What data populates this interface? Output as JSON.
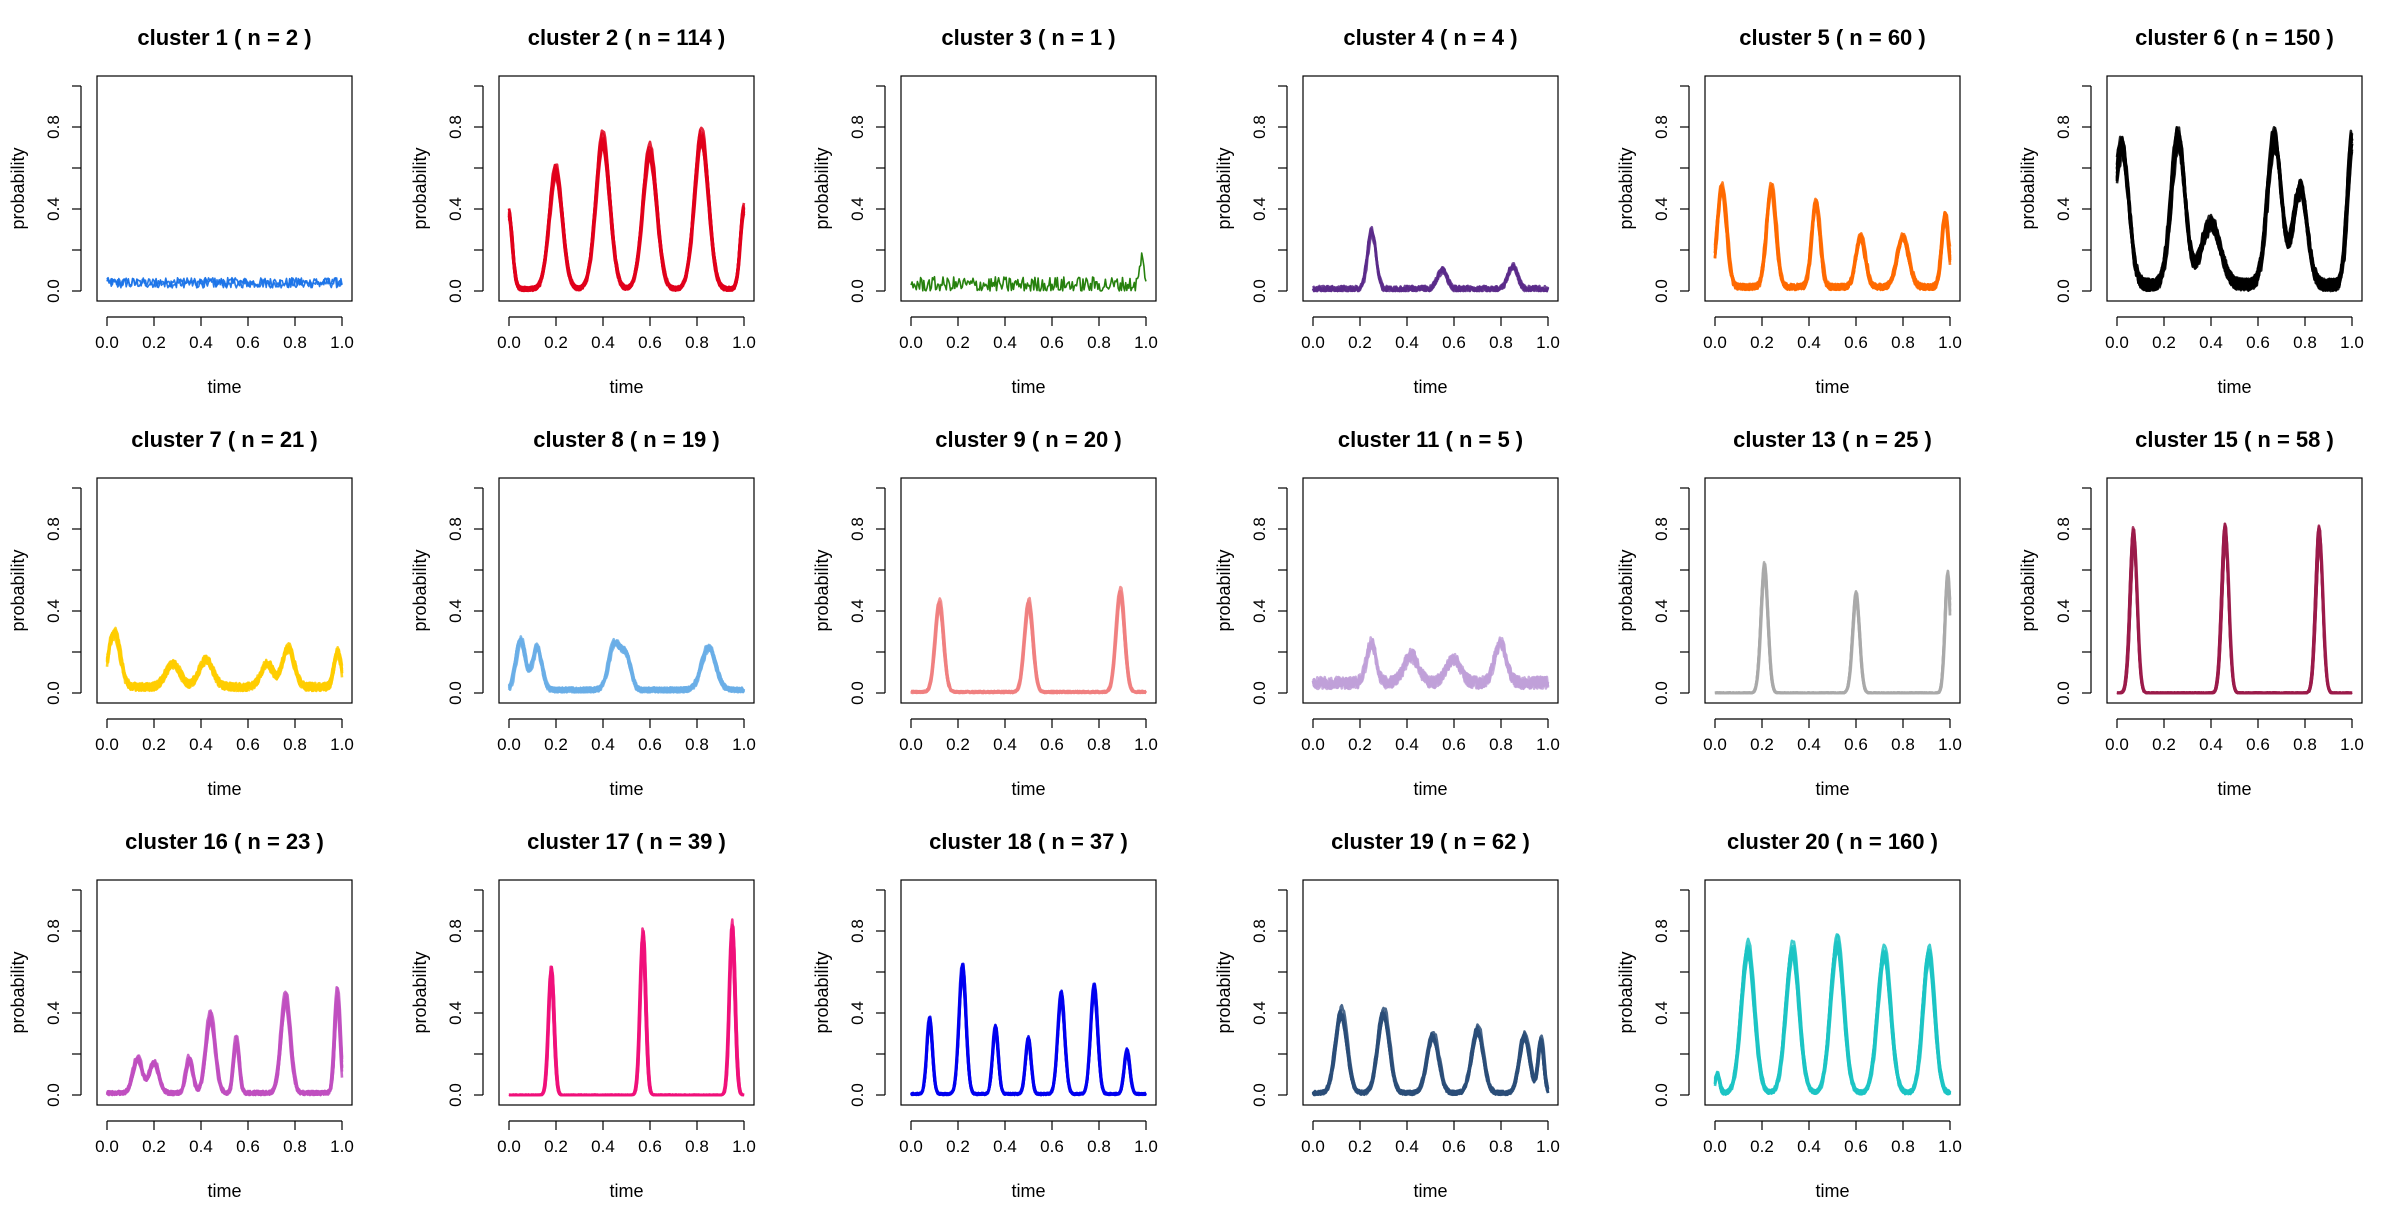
{
  "figure": {
    "title": ""
  },
  "chart_data": [
    {
      "type": "line",
      "title": "cluster 1 ( n = 2 )",
      "xlabel": "time",
      "ylabel": "probability",
      "color": "#1a73e8",
      "xlim": [
        0,
        1
      ],
      "ylim": [
        0,
        1
      ],
      "peaks": [],
      "baseline": 0.04,
      "noise": 0.025,
      "nlines": 2,
      "xticks": [
        "0.0",
        "0.2",
        "0.4",
        "0.6",
        "0.8",
        "1.0"
      ],
      "yticks": [
        "0.0",
        "0.4",
        "0.8"
      ]
    },
    {
      "type": "line",
      "title": "cluster 2 ( n = 114 )",
      "xlabel": "time",
      "ylabel": "probability",
      "color": "#e0001b",
      "xlim": [
        0,
        1
      ],
      "ylim": [
        0,
        1
      ],
      "peaks": [
        {
          "x": 0.0,
          "y": 0.4,
          "w": 0.015
        },
        {
          "x": 0.2,
          "y": 0.62,
          "w": 0.028
        },
        {
          "x": 0.4,
          "y": 0.78,
          "w": 0.03
        },
        {
          "x": 0.6,
          "y": 0.72,
          "w": 0.03
        },
        {
          "x": 0.82,
          "y": 0.8,
          "w": 0.03
        },
        {
          "x": 1.0,
          "y": 0.42,
          "w": 0.015
        }
      ],
      "baseline": 0.01,
      "noise": 0.01,
      "nlines": 14,
      "xticks": [
        "0.0",
        "0.2",
        "0.4",
        "0.6",
        "0.8",
        "1.0"
      ],
      "yticks": [
        "0.0",
        "0.4",
        "0.8"
      ]
    },
    {
      "type": "line",
      "title": "cluster 3 ( n = 1 )",
      "xlabel": "time",
      "ylabel": "probability",
      "color": "#1a7a00",
      "xlim": [
        0,
        1
      ],
      "ylim": [
        0,
        1
      ],
      "peaks": [
        {
          "x": 0.98,
          "y": 0.14,
          "w": 0.008
        }
      ],
      "baseline": 0.03,
      "noise": 0.04,
      "nlines": 1,
      "xticks": [
        "0.0",
        "0.2",
        "0.4",
        "0.6",
        "0.8",
        "1.0"
      ],
      "yticks": [
        "0.0",
        "0.4",
        "0.8"
      ]
    },
    {
      "type": "line",
      "title": "cluster 4 ( n = 4 )",
      "xlabel": "time",
      "ylabel": "probability",
      "color": "#5a2a8a",
      "xlim": [
        0,
        1
      ],
      "ylim": [
        0,
        1
      ],
      "peaks": [
        {
          "x": 0.25,
          "y": 0.3,
          "w": 0.018
        },
        {
          "x": 0.55,
          "y": 0.1,
          "w": 0.02
        },
        {
          "x": 0.85,
          "y": 0.12,
          "w": 0.02
        }
      ],
      "baseline": 0.01,
      "noise": 0.015,
      "nlines": 4,
      "xticks": [
        "0.0",
        "0.2",
        "0.4",
        "0.6",
        "0.8",
        "1.0"
      ],
      "yticks": [
        "0.0",
        "0.4",
        "0.8"
      ]
    },
    {
      "type": "line",
      "title": "cluster 5 ( n = 60 )",
      "xlabel": "time",
      "ylabel": "probability",
      "color": "#ff6a00",
      "xlim": [
        0,
        1
      ],
      "ylim": [
        0,
        1
      ],
      "peaks": [
        {
          "x": 0.03,
          "y": 0.5,
          "w": 0.02
        },
        {
          "x": 0.24,
          "y": 0.5,
          "w": 0.02
        },
        {
          "x": 0.43,
          "y": 0.42,
          "w": 0.018
        },
        {
          "x": 0.62,
          "y": 0.25,
          "w": 0.02
        },
        {
          "x": 0.8,
          "y": 0.25,
          "w": 0.025
        },
        {
          "x": 0.98,
          "y": 0.36,
          "w": 0.015
        }
      ],
      "baseline": 0.02,
      "noise": 0.015,
      "nlines": 10,
      "xticks": [
        "0.0",
        "0.2",
        "0.4",
        "0.6",
        "0.8",
        "1.0"
      ],
      "yticks": [
        "0.0",
        "0.4",
        "0.8"
      ]
    },
    {
      "type": "line",
      "title": "cluster 6 ( n = 150 )",
      "xlabel": "time",
      "ylabel": "probability",
      "color": "#000000",
      "xlim": [
        0,
        1
      ],
      "ylim": [
        0,
        1
      ],
      "peaks": [
        {
          "x": 0.02,
          "y": 0.72,
          "w": 0.03
        },
        {
          "x": 0.26,
          "y": 0.76,
          "w": 0.03
        },
        {
          "x": 0.4,
          "y": 0.32,
          "w": 0.04
        },
        {
          "x": 0.67,
          "y": 0.76,
          "w": 0.03
        },
        {
          "x": 0.78,
          "y": 0.5,
          "w": 0.03
        },
        {
          "x": 1.0,
          "y": 0.74,
          "w": 0.02
        }
      ],
      "baseline": 0.03,
      "noise": 0.03,
      "nlines": 16,
      "xticks": [
        "0.0",
        "0.2",
        "0.4",
        "0.6",
        "0.8",
        "1.0"
      ],
      "yticks": [
        "0.0",
        "0.4",
        "0.8"
      ]
    },
    {
      "type": "line",
      "title": "cluster 7 ( n = 21 )",
      "xlabel": "time",
      "ylabel": "probability",
      "color": "#ffcc00",
      "xlim": [
        0,
        1
      ],
      "ylim": [
        0,
        1
      ],
      "peaks": [
        {
          "x": 0.03,
          "y": 0.28,
          "w": 0.025
        },
        {
          "x": 0.28,
          "y": 0.12,
          "w": 0.03
        },
        {
          "x": 0.42,
          "y": 0.14,
          "w": 0.03
        },
        {
          "x": 0.68,
          "y": 0.12,
          "w": 0.025
        },
        {
          "x": 0.77,
          "y": 0.2,
          "w": 0.025
        },
        {
          "x": 0.98,
          "y": 0.18,
          "w": 0.015
        }
      ],
      "baseline": 0.03,
      "noise": 0.02,
      "nlines": 8,
      "xticks": [
        "0.0",
        "0.2",
        "0.4",
        "0.6",
        "0.8",
        "1.0"
      ],
      "yticks": [
        "0.0",
        "0.4",
        "0.8"
      ]
    },
    {
      "type": "line",
      "title": "cluster 8 ( n = 19 )",
      "xlabel": "time",
      "ylabel": "probability",
      "color": "#6aaee6",
      "xlim": [
        0,
        1
      ],
      "ylim": [
        0,
        1
      ],
      "peaks": [
        {
          "x": 0.05,
          "y": 0.26,
          "w": 0.02
        },
        {
          "x": 0.12,
          "y": 0.22,
          "w": 0.02
        },
        {
          "x": 0.45,
          "y": 0.24,
          "w": 0.025
        },
        {
          "x": 0.5,
          "y": 0.16,
          "w": 0.02
        },
        {
          "x": 0.85,
          "y": 0.22,
          "w": 0.03
        }
      ],
      "baseline": 0.015,
      "noise": 0.012,
      "nlines": 8,
      "xticks": [
        "0.0",
        "0.2",
        "0.4",
        "0.6",
        "0.8",
        "1.0"
      ],
      "yticks": [
        "0.0",
        "0.4",
        "0.8"
      ]
    },
    {
      "type": "line",
      "title": "cluster 9 ( n = 20 )",
      "xlabel": "time",
      "ylabel": "probability",
      "color": "#f08080",
      "xlim": [
        0,
        1
      ],
      "ylim": [
        0,
        1
      ],
      "peaks": [
        {
          "x": 0.12,
          "y": 0.46,
          "w": 0.018
        },
        {
          "x": 0.5,
          "y": 0.46,
          "w": 0.018
        },
        {
          "x": 0.89,
          "y": 0.52,
          "w": 0.018
        }
      ],
      "baseline": 0.005,
      "noise": 0.005,
      "nlines": 8,
      "xticks": [
        "0.0",
        "0.2",
        "0.4",
        "0.6",
        "0.8",
        "1.0"
      ],
      "yticks": [
        "0.0",
        "0.4",
        "0.8"
      ]
    },
    {
      "type": "line",
      "title": "cluster 11 ( n = 5 )",
      "xlabel": "time",
      "ylabel": "probability",
      "color": "#c0a0d8",
      "xlim": [
        0,
        1
      ],
      "ylim": [
        0,
        1
      ],
      "peaks": [
        {
          "x": 0.25,
          "y": 0.2,
          "w": 0.02
        },
        {
          "x": 0.42,
          "y": 0.14,
          "w": 0.03
        },
        {
          "x": 0.6,
          "y": 0.12,
          "w": 0.03
        },
        {
          "x": 0.8,
          "y": 0.2,
          "w": 0.025
        }
      ],
      "baseline": 0.05,
      "noise": 0.03,
      "nlines": 5,
      "xticks": [
        "0.0",
        "0.2",
        "0.4",
        "0.6",
        "0.8",
        "1.0"
      ],
      "yticks": [
        "0.0",
        "0.4",
        "0.8"
      ]
    },
    {
      "type": "line",
      "title": "cluster 13 ( n = 25 )",
      "xlabel": "time",
      "ylabel": "probability",
      "color": "#a9a9a9",
      "xlim": [
        0,
        1
      ],
      "ylim": [
        0,
        1
      ],
      "peaks": [
        {
          "x": 0.21,
          "y": 0.64,
          "w": 0.015
        },
        {
          "x": 0.6,
          "y": 0.5,
          "w": 0.015
        },
        {
          "x": 0.99,
          "y": 0.6,
          "w": 0.012
        }
      ],
      "baseline": 0.0,
      "noise": 0.003,
      "nlines": 8,
      "xticks": [
        "0.0",
        "0.2",
        "0.4",
        "0.6",
        "0.8",
        "1.0"
      ],
      "yticks": [
        "0.0",
        "0.4",
        "0.8"
      ]
    },
    {
      "type": "line",
      "title": "cluster 15 ( n = 58 )",
      "xlabel": "time",
      "ylabel": "probability",
      "color": "#9b1b4a",
      "xlim": [
        0,
        1
      ],
      "ylim": [
        0,
        1
      ],
      "peaks": [
        {
          "x": 0.07,
          "y": 0.82,
          "w": 0.015
        },
        {
          "x": 0.46,
          "y": 0.84,
          "w": 0.015
        },
        {
          "x": 0.86,
          "y": 0.83,
          "w": 0.015
        }
      ],
      "baseline": 0.0,
      "noise": 0.003,
      "nlines": 10,
      "xticks": [
        "0.0",
        "0.2",
        "0.4",
        "0.6",
        "0.8",
        "1.0"
      ],
      "yticks": [
        "0.0",
        "0.4",
        "0.8"
      ]
    },
    {
      "type": "line",
      "title": "cluster 16 ( n = 23 )",
      "xlabel": "time",
      "ylabel": "probability",
      "color": "#bf4fbf",
      "xlim": [
        0,
        1
      ],
      "ylim": [
        0,
        1
      ],
      "peaks": [
        {
          "x": 0.13,
          "y": 0.18,
          "w": 0.02
        },
        {
          "x": 0.2,
          "y": 0.16,
          "w": 0.02
        },
        {
          "x": 0.35,
          "y": 0.18,
          "w": 0.015
        },
        {
          "x": 0.44,
          "y": 0.4,
          "w": 0.02
        },
        {
          "x": 0.55,
          "y": 0.28,
          "w": 0.012
        },
        {
          "x": 0.76,
          "y": 0.5,
          "w": 0.02
        },
        {
          "x": 0.98,
          "y": 0.52,
          "w": 0.012
        }
      ],
      "baseline": 0.01,
      "noise": 0.01,
      "nlines": 8,
      "xticks": [
        "0.0",
        "0.2",
        "0.4",
        "0.6",
        "0.8",
        "1.0"
      ],
      "yticks": [
        "0.0",
        "0.4",
        "0.8"
      ]
    },
    {
      "type": "line",
      "title": "cluster 17 ( n = 39 )",
      "xlabel": "time",
      "ylabel": "probability",
      "color": "#f0107a",
      "xlim": [
        0,
        1
      ],
      "ylim": [
        0,
        1
      ],
      "peaks": [
        {
          "x": 0.18,
          "y": 0.64,
          "w": 0.012
        },
        {
          "x": 0.57,
          "y": 0.82,
          "w": 0.012
        },
        {
          "x": 0.95,
          "y": 0.86,
          "w": 0.012
        }
      ],
      "baseline": 0.0,
      "noise": 0.002,
      "nlines": 8,
      "xticks": [
        "0.0",
        "0.2",
        "0.4",
        "0.6",
        "0.8",
        "1.0"
      ],
      "yticks": [
        "0.0",
        "0.4",
        "0.8"
      ]
    },
    {
      "type": "line",
      "title": "cluster 18 ( n = 37 )",
      "xlabel": "time",
      "ylabel": "probability",
      "color": "#0000f0",
      "xlim": [
        0,
        1
      ],
      "ylim": [
        0,
        1
      ],
      "peaks": [
        {
          "x": 0.08,
          "y": 0.38,
          "w": 0.012
        },
        {
          "x": 0.22,
          "y": 0.64,
          "w": 0.015
        },
        {
          "x": 0.36,
          "y": 0.34,
          "w": 0.012
        },
        {
          "x": 0.5,
          "y": 0.28,
          "w": 0.012
        },
        {
          "x": 0.64,
          "y": 0.5,
          "w": 0.015
        },
        {
          "x": 0.78,
          "y": 0.54,
          "w": 0.015
        },
        {
          "x": 0.92,
          "y": 0.22,
          "w": 0.012
        }
      ],
      "baseline": 0.005,
      "noise": 0.005,
      "nlines": 8,
      "xticks": [
        "0.0",
        "0.2",
        "0.4",
        "0.6",
        "0.8",
        "1.0"
      ],
      "yticks": [
        "0.0",
        "0.4",
        "0.8"
      ]
    },
    {
      "type": "line",
      "title": "cluster 19 ( n = 62 )",
      "xlabel": "time",
      "ylabel": "probability",
      "color": "#2a4e78",
      "xlim": [
        0,
        1
      ],
      "ylim": [
        0,
        1
      ],
      "peaks": [
        {
          "x": 0.12,
          "y": 0.42,
          "w": 0.025
        },
        {
          "x": 0.3,
          "y": 0.42,
          "w": 0.025
        },
        {
          "x": 0.51,
          "y": 0.3,
          "w": 0.025
        },
        {
          "x": 0.7,
          "y": 0.33,
          "w": 0.025
        },
        {
          "x": 0.9,
          "y": 0.3,
          "w": 0.022
        },
        {
          "x": 0.97,
          "y": 0.28,
          "w": 0.012
        }
      ],
      "baseline": 0.01,
      "noise": 0.01,
      "nlines": 10,
      "xticks": [
        "0.0",
        "0.2",
        "0.4",
        "0.6",
        "0.8",
        "1.0"
      ],
      "yticks": [
        "0.0",
        "0.4",
        "0.8"
      ]
    },
    {
      "type": "line",
      "title": "cluster 20 ( n = 160 )",
      "xlabel": "time",
      "ylabel": "probability",
      "color": "#1cc4c4",
      "xlim": [
        0,
        1
      ],
      "ylim": [
        0,
        1
      ],
      "peaks": [
        {
          "x": 0.01,
          "y": 0.1,
          "w": 0.01
        },
        {
          "x": 0.14,
          "y": 0.76,
          "w": 0.028
        },
        {
          "x": 0.33,
          "y": 0.76,
          "w": 0.028
        },
        {
          "x": 0.52,
          "y": 0.8,
          "w": 0.028
        },
        {
          "x": 0.72,
          "y": 0.74,
          "w": 0.028
        },
        {
          "x": 0.91,
          "y": 0.74,
          "w": 0.025
        }
      ],
      "baseline": 0.01,
      "noise": 0.01,
      "nlines": 14,
      "xticks": [
        "0.0",
        "0.2",
        "0.4",
        "0.6",
        "0.8",
        "1.0"
      ],
      "yticks": [
        "0.0",
        "0.4",
        "0.8"
      ]
    }
  ]
}
